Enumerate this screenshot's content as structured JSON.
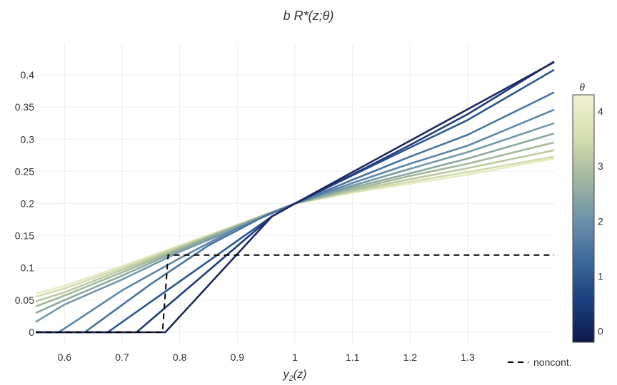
{
  "chart_data": {
    "type": "line",
    "title": "b R*(z;θ)",
    "xlabel_main": "y",
    "xlabel_sub": "2",
    "xlabel_tail": "(z)",
    "xlim": [
      0.55,
      1.45
    ],
    "ylim": [
      -0.02,
      0.45
    ],
    "x_ticks": [
      0.6,
      0.7,
      0.8,
      0.9,
      1,
      1.1,
      1.2,
      1.3
    ],
    "x_tick_labels": [
      "0.6",
      "0.7",
      "0.8",
      "0.9",
      "1",
      "1.1",
      "1.2",
      "1.3"
    ],
    "y_ticks": [
      0,
      0.05,
      0.1,
      0.15,
      0.2,
      0.25,
      0.3,
      0.35,
      0.4
    ],
    "y_tick_labels": [
      "0",
      "0.05",
      "0.1",
      "0.15",
      "0.2",
      "0.25",
      "0.3",
      "0.35",
      "0.4"
    ],
    "grid": true,
    "colorbar": {
      "title": "θ",
      "range": [
        -0.2,
        4.3
      ],
      "ticks": [
        0,
        1,
        2,
        3,
        4
      ],
      "tick_labels": [
        "0",
        "1",
        "2",
        "3",
        "4"
      ],
      "colorscale": [
        "#0d1a4f",
        "#1b3f7e",
        "#3e6a9c",
        "#6e94ab",
        "#a4b89e",
        "#d6dfb0",
        "#f0f2d3"
      ]
    },
    "series": [
      {
        "theta": 0.0,
        "color": "#20285f",
        "points": [
          [
            0.55,
            0
          ],
          [
            0.775,
            0
          ],
          [
            0.96,
            0.18
          ],
          [
            1.0,
            0.2
          ],
          [
            1.45,
            0.42
          ]
        ]
      },
      {
        "theta": 0.4,
        "color": "#1f3a7a",
        "points": [
          [
            0.55,
            0
          ],
          [
            0.725,
            0
          ],
          [
            0.96,
            0.18
          ],
          [
            1.0,
            0.2
          ],
          [
            1.1,
            0.245
          ],
          [
            1.2,
            0.291
          ],
          [
            1.3,
            0.339
          ],
          [
            1.45,
            0.421
          ]
        ]
      },
      {
        "theta": 0.9,
        "color": "#2d568f",
        "points": [
          [
            0.55,
            0
          ],
          [
            0.675,
            0
          ],
          [
            0.96,
            0.18
          ],
          [
            1.0,
            0.2
          ],
          [
            1.1,
            0.244
          ],
          [
            1.2,
            0.287
          ],
          [
            1.3,
            0.33
          ],
          [
            1.45,
            0.408
          ]
        ]
      },
      {
        "theta": 1.4,
        "color": "#4a73a0",
        "points": [
          [
            0.55,
            0
          ],
          [
            0.635,
            0
          ],
          [
            0.75,
            0.075
          ],
          [
            0.85,
            0.135
          ],
          [
            0.95,
            0.182
          ],
          [
            1.0,
            0.2
          ],
          [
            1.1,
            0.237
          ],
          [
            1.2,
            0.273
          ],
          [
            1.3,
            0.307
          ],
          [
            1.45,
            0.373
          ]
        ]
      },
      {
        "theta": 1.8,
        "color": "#5e86a8",
        "points": [
          [
            0.55,
            0
          ],
          [
            0.59,
            0
          ],
          [
            0.7,
            0.065
          ],
          [
            0.8,
            0.115
          ],
          [
            0.9,
            0.162
          ],
          [
            1.0,
            0.2
          ],
          [
            1.1,
            0.232
          ],
          [
            1.2,
            0.262
          ],
          [
            1.3,
            0.29
          ],
          [
            1.45,
            0.346
          ]
        ]
      },
      {
        "theta": 2.2,
        "color": "#7599a6",
        "points": [
          [
            0.55,
            0.016
          ],
          [
            0.6,
            0.043
          ],
          [
            0.7,
            0.082
          ],
          [
            0.8,
            0.125
          ],
          [
            0.9,
            0.162
          ],
          [
            1.0,
            0.2
          ],
          [
            1.1,
            0.228
          ],
          [
            1.2,
            0.254
          ],
          [
            1.3,
            0.28
          ],
          [
            1.45,
            0.325
          ]
        ]
      },
      {
        "theta": 2.7,
        "color": "#8ca99e",
        "points": [
          [
            0.55,
            0.03
          ],
          [
            0.6,
            0.05
          ],
          [
            0.7,
            0.088
          ],
          [
            0.8,
            0.128
          ],
          [
            0.9,
            0.165
          ],
          [
            1.0,
            0.2
          ],
          [
            1.1,
            0.225
          ],
          [
            1.2,
            0.247
          ],
          [
            1.3,
            0.27
          ],
          [
            1.45,
            0.309
          ]
        ]
      },
      {
        "theta": 3.1,
        "color": "#a3b99a",
        "points": [
          [
            0.55,
            0.04
          ],
          [
            0.6,
            0.057
          ],
          [
            0.7,
            0.093
          ],
          [
            0.8,
            0.13
          ],
          [
            0.9,
            0.165
          ],
          [
            1.0,
            0.2
          ],
          [
            1.1,
            0.222
          ],
          [
            1.2,
            0.243
          ],
          [
            1.3,
            0.262
          ],
          [
            1.45,
            0.295
          ]
        ]
      },
      {
        "theta": 3.6,
        "color": "#bcc9a0",
        "points": [
          [
            0.55,
            0.048
          ],
          [
            0.6,
            0.062
          ],
          [
            0.7,
            0.097
          ],
          [
            0.8,
            0.132
          ],
          [
            0.9,
            0.166
          ],
          [
            1.0,
            0.2
          ],
          [
            1.1,
            0.22
          ],
          [
            1.2,
            0.238
          ],
          [
            1.3,
            0.255
          ],
          [
            1.45,
            0.283
          ]
        ]
      },
      {
        "theta": 4.0,
        "color": "#d3dcae",
        "points": [
          [
            0.55,
            0.055
          ],
          [
            0.6,
            0.068
          ],
          [
            0.7,
            0.1
          ],
          [
            0.8,
            0.134
          ],
          [
            0.9,
            0.167
          ],
          [
            1.0,
            0.2
          ],
          [
            1.1,
            0.218
          ],
          [
            1.2,
            0.234
          ],
          [
            1.3,
            0.249
          ],
          [
            1.45,
            0.273
          ]
        ]
      },
      {
        "theta": 4.3,
        "color": "#e6ebc4",
        "points": [
          [
            0.55,
            0.06
          ],
          [
            0.6,
            0.072
          ],
          [
            0.7,
            0.103
          ],
          [
            0.8,
            0.135
          ],
          [
            0.9,
            0.167
          ],
          [
            1.0,
            0.2
          ],
          [
            1.1,
            0.217
          ],
          [
            1.2,
            0.231
          ],
          [
            1.3,
            0.245
          ],
          [
            1.45,
            0.27
          ]
        ]
      }
    ],
    "noncont": {
      "name": "noncont.",
      "color": "#000000",
      "points": [
        [
          0.55,
          0
        ],
        [
          0.77,
          0
        ],
        [
          0.78,
          0.12
        ],
        [
          1.45,
          0.12
        ]
      ]
    }
  }
}
